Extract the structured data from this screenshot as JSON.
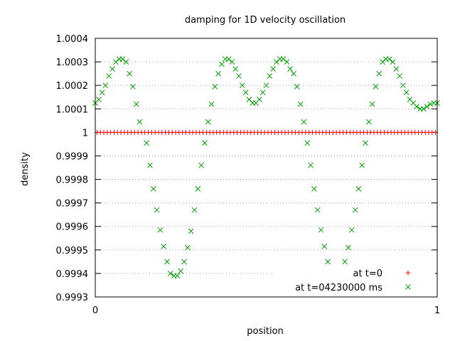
{
  "chart_data": {
    "type": "scatter",
    "title": "damping for 1D velocity oscillation",
    "xlabel": "position",
    "ylabel": "density",
    "xlim": [
      0,
      1
    ],
    "ylim": [
      0.9993,
      1.0004
    ],
    "grid": true,
    "legend_position": "bottom-right",
    "x_ticks": [
      {
        "value": 0,
        "label": "0"
      },
      {
        "value": 1,
        "label": "1"
      }
    ],
    "y_ticks": [
      {
        "value": 0.9993,
        "label": "0.9993"
      },
      {
        "value": 0.9994,
        "label": "0.9994"
      },
      {
        "value": 0.9995,
        "label": "0.9995"
      },
      {
        "value": 0.9996,
        "label": "0.9996"
      },
      {
        "value": 0.9997,
        "label": "0.9997"
      },
      {
        "value": 0.9998,
        "label": "0.9998"
      },
      {
        "value": 0.9999,
        "label": "0.9999"
      },
      {
        "value": 1,
        "label": "1"
      },
      {
        "value": 1.0001,
        "label": "1.0001"
      },
      {
        "value": 1.0002,
        "label": "1.0002"
      },
      {
        "value": 1.0003,
        "label": "1.0003"
      },
      {
        "value": 1.0004,
        "label": "1.0004"
      }
    ],
    "series": [
      {
        "name": "at t=0",
        "marker": "plus",
        "color": "#ff0000",
        "x": [
          0.005,
          0.015,
          0.025,
          0.035,
          0.045,
          0.055,
          0.065,
          0.075,
          0.085,
          0.095,
          0.105,
          0.115,
          0.125,
          0.135,
          0.145,
          0.155,
          0.165,
          0.175,
          0.185,
          0.195,
          0.205,
          0.215,
          0.225,
          0.235,
          0.245,
          0.255,
          0.265,
          0.275,
          0.285,
          0.295,
          0.305,
          0.315,
          0.325,
          0.335,
          0.345,
          0.355,
          0.365,
          0.375,
          0.385,
          0.395,
          0.405,
          0.415,
          0.425,
          0.435,
          0.445,
          0.455,
          0.465,
          0.475,
          0.485,
          0.495,
          0.505,
          0.515,
          0.525,
          0.535,
          0.545,
          0.555,
          0.565,
          0.575,
          0.585,
          0.595,
          0.605,
          0.615,
          0.625,
          0.635,
          0.645,
          0.655,
          0.665,
          0.675,
          0.685,
          0.695,
          0.705,
          0.715,
          0.725,
          0.735,
          0.745,
          0.755,
          0.765,
          0.775,
          0.785,
          0.795,
          0.805,
          0.815,
          0.825,
          0.835,
          0.845,
          0.855,
          0.865,
          0.875,
          0.885,
          0.895,
          0.905,
          0.915,
          0.925,
          0.935,
          0.945,
          0.955,
          0.965,
          0.975,
          0.985,
          0.995
        ],
        "y": [
          1,
          1,
          1,
          1,
          1,
          1,
          1,
          1,
          1,
          1,
          1,
          1,
          1,
          1,
          1,
          1,
          1,
          1,
          1,
          1,
          1,
          1,
          1,
          1,
          1,
          1,
          1,
          1,
          1,
          1,
          1,
          1,
          1,
          1,
          1,
          1,
          1,
          1,
          1,
          1,
          1,
          1,
          1,
          1,
          1,
          1,
          1,
          1,
          1,
          1,
          1,
          1,
          1,
          1,
          1,
          1,
          1,
          1,
          1,
          1,
          1,
          1,
          1,
          1,
          1,
          1,
          1,
          1,
          1,
          1,
          1,
          1,
          1,
          1,
          1,
          1,
          1,
          1,
          1,
          1,
          1,
          1,
          1,
          1,
          1,
          1,
          1,
          1,
          1,
          1,
          1,
          1,
          1,
          1,
          1,
          1,
          1,
          1,
          1,
          1
        ]
      },
      {
        "name": "at t=04230000 ms",
        "marker": "cross",
        "color": "#00a000",
        "x": [
          0.0,
          0.01,
          0.02,
          0.03,
          0.04,
          0.05,
          0.06,
          0.07,
          0.08,
          0.09,
          0.1,
          0.11,
          0.12,
          0.13,
          0.15,
          0.16,
          0.17,
          0.18,
          0.19,
          0.2,
          0.21,
          0.22,
          0.23,
          0.24,
          0.25,
          0.26,
          0.27,
          0.28,
          0.29,
          0.3,
          0.31,
          0.32,
          0.33,
          0.34,
          0.35,
          0.36,
          0.37,
          0.38,
          0.39,
          0.4,
          0.41,
          0.42,
          0.43,
          0.44,
          0.45,
          0.46,
          0.47,
          0.48,
          0.49,
          0.5,
          0.51,
          0.52,
          0.53,
          0.54,
          0.55,
          0.56,
          0.57,
          0.58,
          0.59,
          0.6,
          0.61,
          0.62,
          0.63,
          0.64,
          0.65,
          0.66,
          0.67,
          0.68,
          0.69,
          0.7,
          0.71,
          0.72,
          0.73,
          0.74,
          0.75,
          0.76,
          0.77,
          0.78,
          0.79,
          0.8,
          0.81,
          0.82,
          0.83,
          0.84,
          0.85,
          0.86,
          0.87,
          0.88,
          0.89,
          0.9,
          0.91,
          0.92,
          0.93,
          0.94,
          0.95,
          0.96,
          0.97,
          0.98,
          0.99,
          1.0
        ],
        "y": [
          1.000125,
          1.00014,
          1.00017,
          1.0002,
          1.00024,
          1.00027,
          1.0003,
          1.000312,
          1.000312,
          1.0003,
          1.00025,
          1.000195,
          1.00012,
          1.000045,
          0.999955,
          0.99986,
          0.99976,
          0.99967,
          0.999585,
          0.999515,
          0.99945,
          0.9994,
          0.99939,
          0.99939,
          0.99941,
          0.99945,
          0.99951,
          0.99958,
          0.99967,
          0.99976,
          0.99986,
          0.999955,
          1.000045,
          1.00012,
          1.000195,
          1.00025,
          1.00029,
          1.000312,
          1.000312,
          1.0003,
          1.00027,
          1.00024,
          1.0002,
          1.00017,
          1.00014,
          1.000125,
          1.000125,
          1.00014,
          1.00017,
          1.0002,
          1.00024,
          1.00027,
          1.0003,
          1.000312,
          1.000312,
          1.0003,
          1.00027,
          1.00025,
          1.000195,
          1.00012,
          1.000045,
          0.999955,
          0.99986,
          0.99976,
          0.99967,
          0.999585,
          0.999515,
          0.99945,
          0.9994,
          0.99939,
          0.99939,
          0.99941,
          0.99945,
          0.99951,
          0.999585,
          0.99967,
          0.99976,
          0.99986,
          0.999955,
          1.000045,
          1.00012,
          1.000195,
          1.00025,
          1.0003,
          1.000312,
          1.000312,
          1.0003,
          1.00027,
          1.00024,
          1.0002,
          1.00017,
          1.00014,
          1.000125,
          1.00011,
          1.0001,
          1.0001,
          1.00011,
          1.00012,
          1.000125,
          1.000125
        ]
      }
    ]
  }
}
